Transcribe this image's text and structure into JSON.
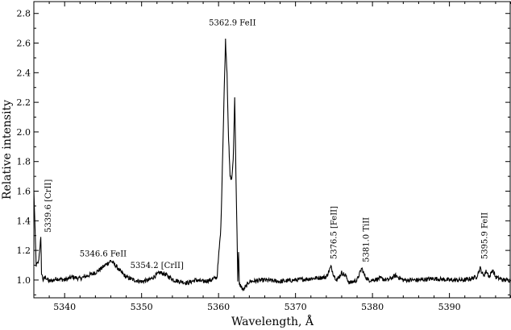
{
  "chart_data": {
    "type": "line",
    "xlabel": "Wavelength, Å",
    "ylabel": "Relative intensity",
    "xlim": [
      5336,
      5398
    ],
    "ylim": [
      0.88,
      2.88
    ],
    "x_ticks": [
      5340,
      5350,
      5360,
      5370,
      5380,
      5390
    ],
    "y_ticks": [
      1.0,
      1.2,
      1.4,
      1.6,
      1.8,
      2.0,
      2.2,
      2.4,
      2.6,
      2.8
    ],
    "grid": false,
    "series": [
      {
        "color": "#000000",
        "x": [
          5336.0,
          5336.3,
          5336.6,
          5336.9,
          5337.0,
          5337.2,
          5337.5,
          5338.0,
          5339.0,
          5340.0,
          5341.0,
          5342.0,
          5343.0,
          5344.0,
          5344.8,
          5345.5,
          5346.0,
          5346.6,
          5347.2,
          5348.0,
          5349.0,
          5350.0,
          5351.0,
          5351.8,
          5352.4,
          5353.0,
          5353.6,
          5354.2,
          5355.0,
          5356.0,
          5357.0,
          5358.0,
          5359.0,
          5359.8,
          5360.3,
          5360.7,
          5360.9,
          5361.1,
          5361.3,
          5361.5,
          5361.7,
          5361.9,
          5362.1,
          5362.3,
          5362.5,
          5362.6,
          5362.7,
          5362.9,
          5363.2,
          5364.0,
          5366.0,
          5368.0,
          5370.0,
          5372.0,
          5374.0,
          5374.6,
          5375.0,
          5375.4,
          5376.0,
          5376.5,
          5377.0,
          5378.0,
          5378.6,
          5379.0,
          5379.4,
          5380.0,
          5381.0,
          5382.0,
          5383.0,
          5384.0,
          5386.0,
          5388.0,
          5390.0,
          5392.0,
          5393.5,
          5394.0,
          5394.4,
          5394.8,
          5395.2,
          5395.6,
          5396.0,
          5397.0,
          5398.0
        ],
        "y": [
          1.6,
          1.1,
          1.12,
          1.28,
          1.05,
          1.0,
          1.02,
          0.99,
          1.01,
          1.0,
          1.02,
          1.01,
          1.03,
          1.05,
          1.08,
          1.11,
          1.13,
          1.1,
          1.06,
          1.02,
          1.0,
          0.99,
          1.0,
          1.03,
          1.05,
          1.04,
          1.02,
          1.0,
          0.99,
          0.98,
          1.0,
          0.99,
          1.0,
          1.02,
          1.35,
          2.2,
          2.62,
          2.4,
          1.95,
          1.7,
          1.68,
          1.8,
          2.23,
          1.6,
          1.0,
          1.18,
          0.97,
          0.96,
          0.93,
          0.99,
          1.0,
          0.99,
          1.0,
          1.01,
          1.02,
          1.09,
          1.03,
          1.0,
          1.05,
          1.03,
          0.98,
          1.0,
          1.08,
          1.03,
          1.0,
          1.0,
          1.01,
          1.0,
          1.03,
          1.0,
          1.0,
          1.01,
          1.0,
          1.0,
          1.02,
          1.08,
          1.03,
          1.06,
          1.02,
          1.07,
          1.02,
          1.0,
          1.0
        ]
      }
    ],
    "annotations": [
      {
        "text": "5339.6 [CrII]",
        "x": 5338.2,
        "y": 1.32,
        "rotate": true
      },
      {
        "text": "5346.6 FeII",
        "x": 5345.0,
        "y": 1.16,
        "rotate": false
      },
      {
        "text": "5354.2 [CrII]",
        "x": 5352.0,
        "y": 1.08,
        "rotate": false
      },
      {
        "text": "5362.9 FeII",
        "x": 5361.8,
        "y": 2.72,
        "rotate": false
      },
      {
        "text": "5376.5 [FeII]",
        "x": 5375.3,
        "y": 1.14,
        "rotate": true
      },
      {
        "text": "5381.0 TiII",
        "x": 5379.5,
        "y": 1.12,
        "rotate": true
      },
      {
        "text": "5395.9 FeII",
        "x": 5394.9,
        "y": 1.14,
        "rotate": true
      }
    ]
  }
}
